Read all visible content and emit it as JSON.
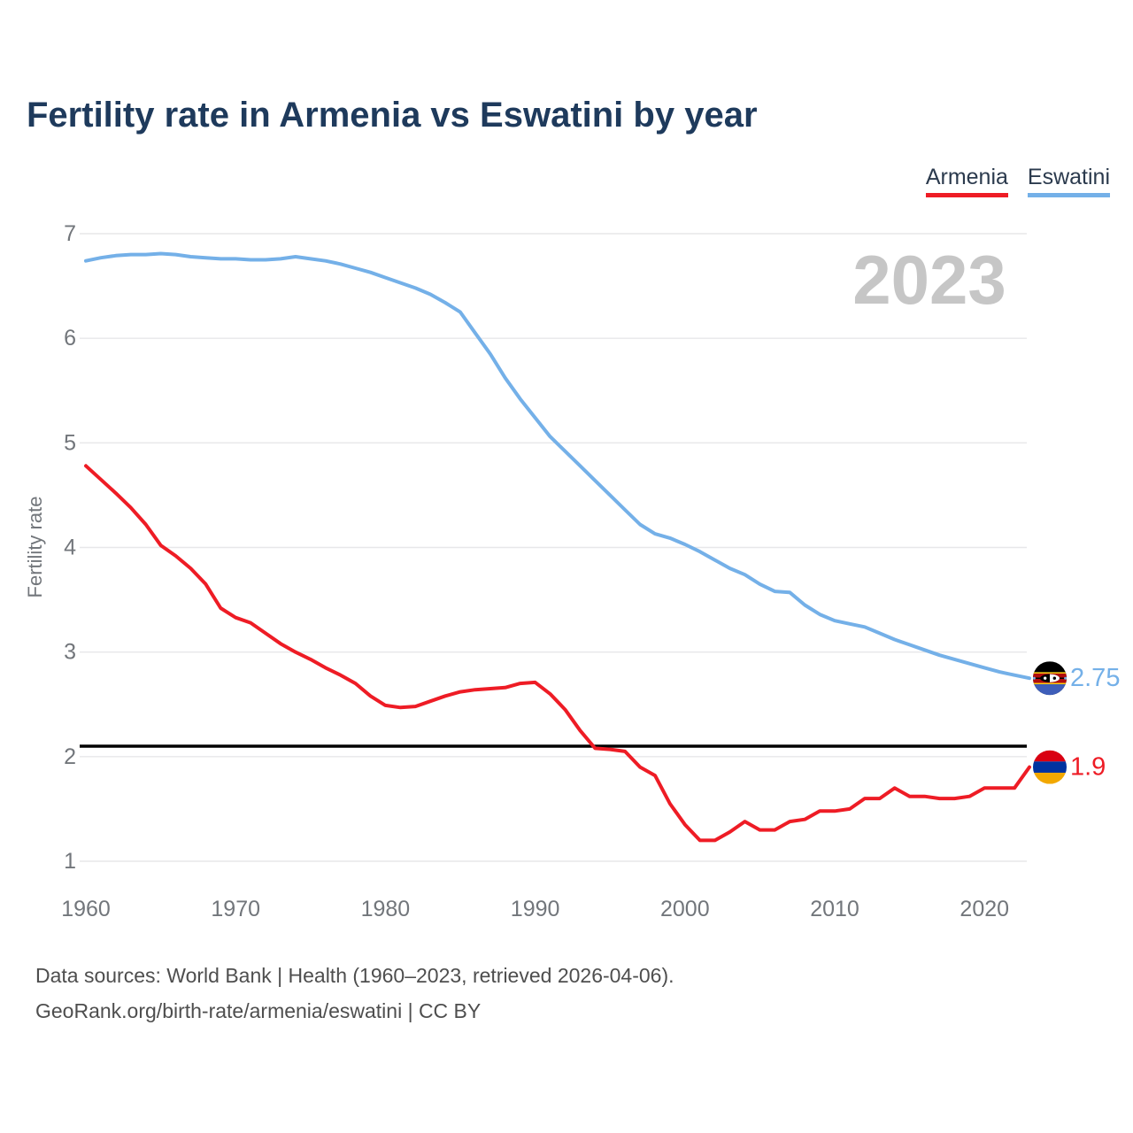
{
  "header": {
    "title": "Fertility rate in Armenia vs Eswatini by year"
  },
  "legend": [
    {
      "label": "Armenia",
      "color": "#ee1c25"
    },
    {
      "label": "Eswatini",
      "color": "#74b0e8"
    }
  ],
  "watermark": "2023",
  "chart_data": {
    "type": "line",
    "title": "Fertility rate in Armenia vs Eswatini by year",
    "xlabel": "",
    "ylabel": "Fertility rate",
    "xlim": [
      1960,
      2023
    ],
    "ylim": [
      1,
      7
    ],
    "xticks": [
      1960,
      1970,
      1980,
      1990,
      2000,
      2010,
      2020
    ],
    "yticks": [
      1,
      2,
      3,
      4,
      5,
      6,
      7
    ],
    "grid": true,
    "legend_position": "top-right",
    "x": [
      1960,
      1961,
      1962,
      1963,
      1964,
      1965,
      1966,
      1967,
      1968,
      1969,
      1970,
      1971,
      1972,
      1973,
      1974,
      1975,
      1976,
      1977,
      1978,
      1979,
      1980,
      1981,
      1982,
      1983,
      1984,
      1985,
      1986,
      1987,
      1988,
      1989,
      1990,
      1991,
      1992,
      1993,
      1994,
      1995,
      1996,
      1997,
      1998,
      1999,
      2000,
      2001,
      2002,
      2003,
      2004,
      2005,
      2006,
      2007,
      2008,
      2009,
      2010,
      2011,
      2012,
      2013,
      2014,
      2015,
      2016,
      2017,
      2018,
      2019,
      2020,
      2021,
      2022,
      2023
    ],
    "series": [
      {
        "name": "Armenia",
        "color": "#ee1c25",
        "values": [
          4.78,
          4.65,
          4.52,
          4.38,
          4.22,
          4.02,
          3.92,
          3.8,
          3.65,
          3.42,
          3.33,
          3.28,
          3.18,
          3.08,
          3.0,
          2.93,
          2.85,
          2.78,
          2.7,
          2.58,
          2.49,
          2.47,
          2.48,
          2.53,
          2.58,
          2.62,
          2.64,
          2.65,
          2.66,
          2.7,
          2.71,
          2.6,
          2.45,
          2.25,
          2.08,
          2.07,
          2.05,
          1.9,
          1.82,
          1.55,
          1.35,
          1.2,
          1.2,
          1.28,
          1.38,
          1.3,
          1.3,
          1.38,
          1.4,
          1.48,
          1.48,
          1.5,
          1.6,
          1.6,
          1.7,
          1.62,
          1.62,
          1.6,
          1.6,
          1.62,
          1.7,
          1.7,
          1.7,
          1.9
        ]
      },
      {
        "name": "Eswatini",
        "color": "#74b0e8",
        "values": [
          6.74,
          6.77,
          6.79,
          6.8,
          6.8,
          6.81,
          6.8,
          6.78,
          6.77,
          6.76,
          6.76,
          6.75,
          6.75,
          6.76,
          6.78,
          6.76,
          6.74,
          6.71,
          6.67,
          6.63,
          6.58,
          6.53,
          6.48,
          6.42,
          6.34,
          6.25,
          6.05,
          5.85,
          5.62,
          5.42,
          5.24,
          5.06,
          4.92,
          4.78,
          4.64,
          4.5,
          4.36,
          4.22,
          4.13,
          4.09,
          4.03,
          3.96,
          3.88,
          3.8,
          3.74,
          3.65,
          3.58,
          3.57,
          3.45,
          3.36,
          3.3,
          3.27,
          3.24,
          3.18,
          3.12,
          3.07,
          3.02,
          2.97,
          2.93,
          2.89,
          2.85,
          2.81,
          2.78,
          2.75
        ]
      }
    ],
    "reference_line": {
      "value": 2.1,
      "color": "#000000"
    },
    "end_labels": [
      {
        "series": "Eswatini",
        "label": "2.75",
        "value": 2.75,
        "color": "#74b0e8",
        "flag": "eswatini-flag"
      },
      {
        "series": "Armenia",
        "label": "1.9",
        "value": 1.9,
        "color": "#ee1c25",
        "flag": "armenia-flag"
      }
    ]
  },
  "footer": {
    "line1": "Data sources: World Bank | Health (1960–2023, retrieved 2026-04-06).",
    "line2": "GeoRank.org/birth-rate/armenia/eswatini | CC BY"
  },
  "colors": {
    "title": "#1e3a5c",
    "tick_label": "#72767b",
    "gridline": "#e7e7e9",
    "watermark": "#c6c6c6",
    "footer_text": "#4e4e4e",
    "armenia_flag": [
      "#d90012",
      "#0033a0",
      "#f2a800"
    ],
    "eswatini_flag": [
      "#000000",
      "#fcd116",
      "#b10c0c",
      "#3e5eb9"
    ]
  }
}
